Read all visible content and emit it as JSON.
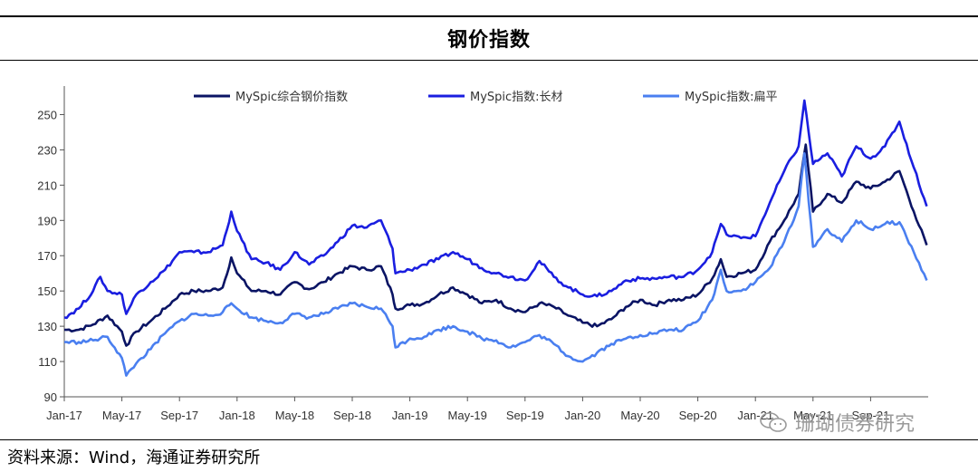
{
  "title": "钢价指数",
  "source": "资料来源：Wind，海通证券研究所",
  "watermark": "珊瑚债券研究",
  "chart_data": {
    "type": "line",
    "ylim": [
      90,
      260
    ],
    "yticks": [
      90,
      110,
      130,
      150,
      170,
      190,
      210,
      230,
      250
    ],
    "xticks": [
      "Jan-17",
      "May-17",
      "Sep-17",
      "Jan-18",
      "May-18",
      "Sep-18",
      "Jan-19",
      "May-19",
      "Sep-19",
      "Jan-20",
      "May-20",
      "Sep-20",
      "Jan-21",
      "May-21",
      "Sep-21"
    ],
    "legend_position": "top",
    "series": [
      {
        "name": "MySpic综合钢价指数",
        "color": "#0a1464",
        "points": [
          [
            0,
            128
          ],
          [
            1,
            128
          ],
          [
            2,
            131
          ],
          [
            3,
            136
          ],
          [
            4,
            127
          ],
          [
            4.3,
            119
          ],
          [
            5,
            127
          ],
          [
            6,
            133
          ],
          [
            7,
            140
          ],
          [
            8,
            148
          ],
          [
            9,
            150
          ],
          [
            10,
            150
          ],
          [
            11,
            152
          ],
          [
            11.6,
            169
          ],
          [
            12,
            160
          ],
          [
            13,
            150
          ],
          [
            14,
            150
          ],
          [
            15,
            148
          ],
          [
            16,
            155
          ],
          [
            17,
            151
          ],
          [
            18,
            155
          ],
          [
            19,
            160
          ],
          [
            20,
            164
          ],
          [
            21,
            162
          ],
          [
            22,
            164
          ],
          [
            22.8,
            148
          ],
          [
            23,
            140
          ],
          [
            24,
            142
          ],
          [
            25,
            143
          ],
          [
            26,
            148
          ],
          [
            27,
            152
          ],
          [
            28,
            148
          ],
          [
            29,
            143
          ],
          [
            30,
            145
          ],
          [
            31,
            140
          ],
          [
            32,
            138
          ],
          [
            33,
            143
          ],
          [
            34,
            141
          ],
          [
            35,
            136
          ],
          [
            36,
            132
          ],
          [
            37,
            130
          ],
          [
            38,
            134
          ],
          [
            39,
            141
          ],
          [
            40,
            145
          ],
          [
            41,
            142
          ],
          [
            42,
            145
          ],
          [
            43,
            145
          ],
          [
            44,
            148
          ],
          [
            45,
            157
          ],
          [
            45.6,
            168
          ],
          [
            46,
            158
          ],
          [
            47,
            160
          ],
          [
            48,
            162
          ],
          [
            49,
            178
          ],
          [
            50,
            190
          ],
          [
            51,
            205
          ],
          [
            51.5,
            233
          ],
          [
            52,
            195
          ],
          [
            53,
            205
          ],
          [
            54,
            200
          ],
          [
            55,
            212
          ],
          [
            56,
            208
          ],
          [
            57,
            212
          ],
          [
            58,
            218
          ],
          [
            59,
            195
          ],
          [
            59.9,
            176
          ]
        ]
      },
      {
        "name": "MySpic指数:长材",
        "color": "#1a1ee0",
        "points": [
          [
            0,
            135
          ],
          [
            1,
            140
          ],
          [
            2,
            150
          ],
          [
            2.5,
            158
          ],
          [
            3,
            150
          ],
          [
            4,
            148
          ],
          [
            4.3,
            137
          ],
          [
            5,
            148
          ],
          [
            6,
            155
          ],
          [
            7,
            162
          ],
          [
            8,
            172
          ],
          [
            9,
            172
          ],
          [
            10,
            172
          ],
          [
            11,
            176
          ],
          [
            11.6,
            195
          ],
          [
            12,
            184
          ],
          [
            13,
            168
          ],
          [
            14,
            166
          ],
          [
            15,
            162
          ],
          [
            16,
            172
          ],
          [
            17,
            165
          ],
          [
            18,
            170
          ],
          [
            19,
            178
          ],
          [
            20,
            187
          ],
          [
            21,
            186
          ],
          [
            22,
            190
          ],
          [
            22.8,
            174
          ],
          [
            23,
            160
          ],
          [
            24,
            162
          ],
          [
            25,
            165
          ],
          [
            26,
            168
          ],
          [
            27,
            172
          ],
          [
            28,
            168
          ],
          [
            29,
            163
          ],
          [
            30,
            160
          ],
          [
            31,
            158
          ],
          [
            32,
            156
          ],
          [
            33,
            167
          ],
          [
            34,
            158
          ],
          [
            35,
            152
          ],
          [
            36,
            148
          ],
          [
            37,
            147
          ],
          [
            38,
            150
          ],
          [
            39,
            156
          ],
          [
            40,
            157
          ],
          [
            41,
            157
          ],
          [
            42,
            158
          ],
          [
            43,
            158
          ],
          [
            44,
            162
          ],
          [
            45,
            172
          ],
          [
            45.6,
            188
          ],
          [
            46,
            182
          ],
          [
            47,
            180
          ],
          [
            48,
            181
          ],
          [
            49,
            200
          ],
          [
            50,
            218
          ],
          [
            51,
            232
          ],
          [
            51.4,
            258
          ],
          [
            52,
            222
          ],
          [
            53,
            228
          ],
          [
            54,
            215
          ],
          [
            55,
            232
          ],
          [
            56,
            225
          ],
          [
            57,
            232
          ],
          [
            58,
            246
          ],
          [
            59,
            220
          ],
          [
            59.9,
            198
          ]
        ]
      },
      {
        "name": "MySpic指数:扁平",
        "color": "#4a7ff0",
        "points": [
          [
            0,
            121
          ],
          [
            1,
            121
          ],
          [
            2,
            122
          ],
          [
            3,
            124
          ],
          [
            4,
            112
          ],
          [
            4.3,
            102
          ],
          [
            5,
            109
          ],
          [
            6,
            117
          ],
          [
            7,
            126
          ],
          [
            8,
            133
          ],
          [
            9,
            137
          ],
          [
            10,
            136
          ],
          [
            11,
            138
          ],
          [
            11.6,
            143
          ],
          [
            12,
            140
          ],
          [
            13,
            135
          ],
          [
            14,
            133
          ],
          [
            15,
            132
          ],
          [
            16,
            137
          ],
          [
            17,
            135
          ],
          [
            18,
            137
          ],
          [
            19,
            140
          ],
          [
            20,
            143
          ],
          [
            21,
            141
          ],
          [
            22,
            140
          ],
          [
            22.8,
            130
          ],
          [
            23,
            118
          ],
          [
            24,
            123
          ],
          [
            25,
            124
          ],
          [
            26,
            128
          ],
          [
            27,
            130
          ],
          [
            28,
            127
          ],
          [
            29,
            123
          ],
          [
            30,
            122
          ],
          [
            31,
            118
          ],
          [
            32,
            121
          ],
          [
            33,
            125
          ],
          [
            34,
            120
          ],
          [
            35,
            113
          ],
          [
            36,
            110
          ],
          [
            37,
            115
          ],
          [
            38,
            120
          ],
          [
            39,
            123
          ],
          [
            40,
            125
          ],
          [
            41,
            126
          ],
          [
            42,
            128
          ],
          [
            43,
            128
          ],
          [
            44,
            133
          ],
          [
            45,
            145
          ],
          [
            45.6,
            162
          ],
          [
            46,
            150
          ],
          [
            47,
            150
          ],
          [
            48,
            155
          ],
          [
            49,
            163
          ],
          [
            50,
            178
          ],
          [
            51,
            198
          ],
          [
            51.4,
            228
          ],
          [
            52,
            175
          ],
          [
            53,
            185
          ],
          [
            54,
            178
          ],
          [
            55,
            190
          ],
          [
            56,
            185
          ],
          [
            57,
            188
          ],
          [
            58,
            189
          ],
          [
            59,
            172
          ],
          [
            59.9,
            156
          ]
        ]
      }
    ]
  }
}
